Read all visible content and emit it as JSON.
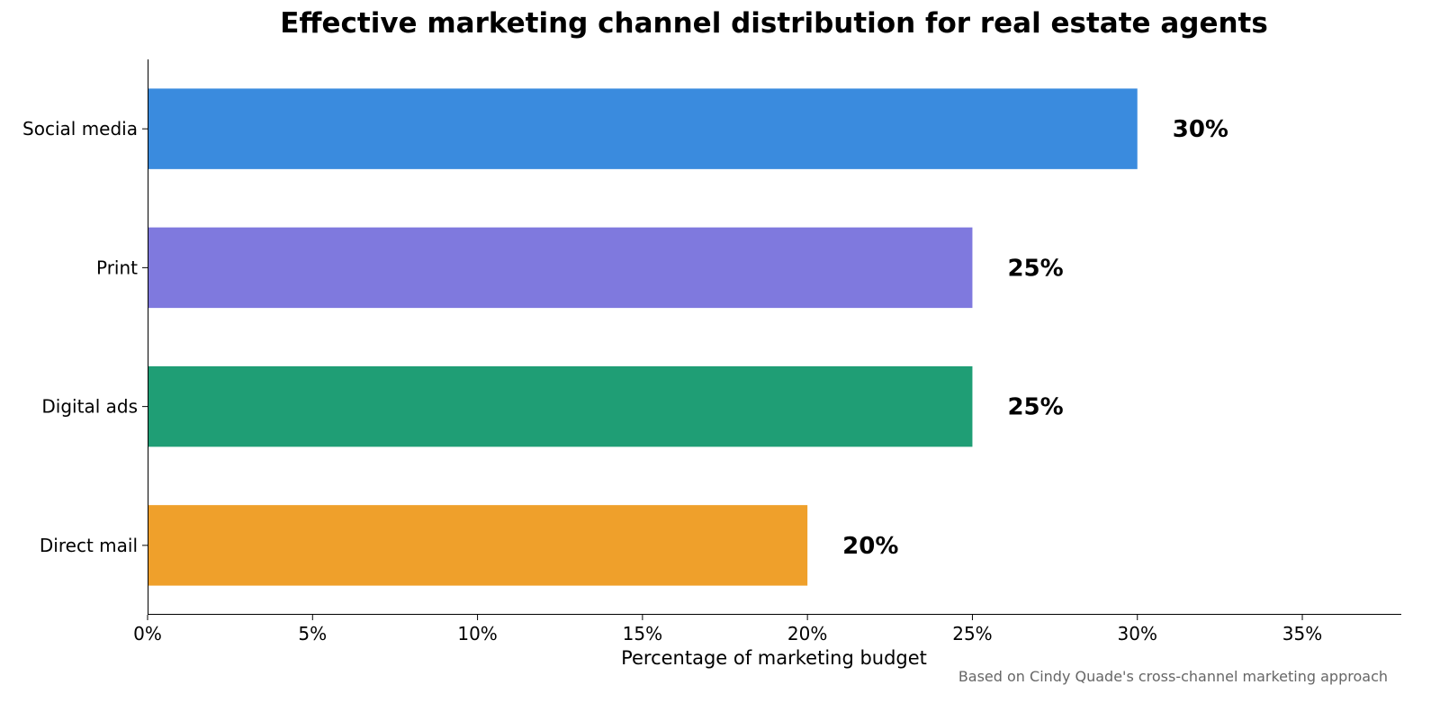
{
  "chart_data": {
    "type": "bar",
    "orientation": "horizontal",
    "title": "Effective marketing channel distribution for real estate agents",
    "xlabel": "Percentage of marketing budget",
    "ylabel": "",
    "categories": [
      "Social media",
      "Print",
      "Digital ads",
      "Direct mail"
    ],
    "values": [
      30,
      25,
      25,
      20
    ],
    "data_labels": [
      "30%",
      "25%",
      "25%",
      "20%"
    ],
    "colors": [
      "#3a8bde",
      "#7f79de",
      "#1f9e75",
      "#efa02b"
    ],
    "xlim": [
      0,
      38
    ],
    "xticks": [
      0,
      5,
      10,
      15,
      20,
      25,
      30,
      35
    ],
    "xtick_labels": [
      "0%",
      "5%",
      "10%",
      "15%",
      "20%",
      "25%",
      "30%",
      "35%"
    ],
    "grid": false,
    "legend": "none",
    "footnote": "Based on Cindy Quade's cross-channel marketing approach"
  }
}
